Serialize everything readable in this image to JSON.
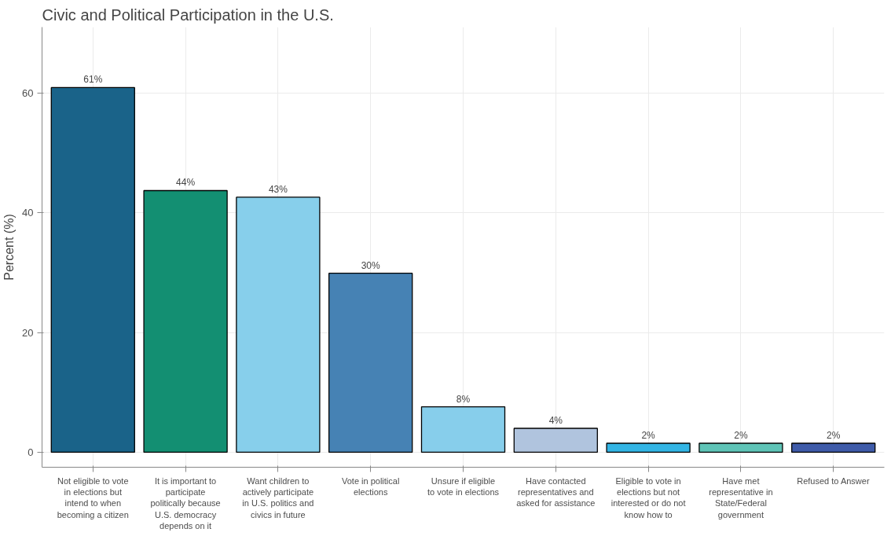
{
  "chart_data": {
    "type": "bar",
    "title": "Civic and Political Participation in the U.S.",
    "ylabel": "Percent (%)",
    "categories": [
      "Not eligible to vote in elections but intend to when becoming a citizen",
      "It is important to participate politically because U.S. democracy depends on it",
      "Want children to actively participate in U.S. politics and civics in future",
      "Vote in political elections",
      "Unsure if eligible to vote in elections",
      "Have contacted representatives and asked for assistance",
      "Eligible to vote in elections but not interested or do not know how to",
      "Have met representative in State/Federal government",
      "Refused to Answer"
    ],
    "values": [
      60.9,
      43.7,
      42.6,
      29.9,
      7.6,
      4.0,
      1.5,
      1.5,
      1.5
    ],
    "value_labels": [
      "61%",
      "44%",
      "43%",
      "30%",
      "8%",
      "4%",
      "2%",
      "2%",
      "2%"
    ],
    "colors": [
      "#1a6389",
      "#138f72",
      "#87cfeb",
      "#4682b4",
      "#87ceeb",
      "#b0c4de",
      "#33b5e5",
      "#5fc4b7",
      "#3f5ba9"
    ],
    "ylim": [
      -2.5,
      71
    ],
    "yticks": [
      0,
      20,
      40,
      60
    ],
    "grid": true
  }
}
